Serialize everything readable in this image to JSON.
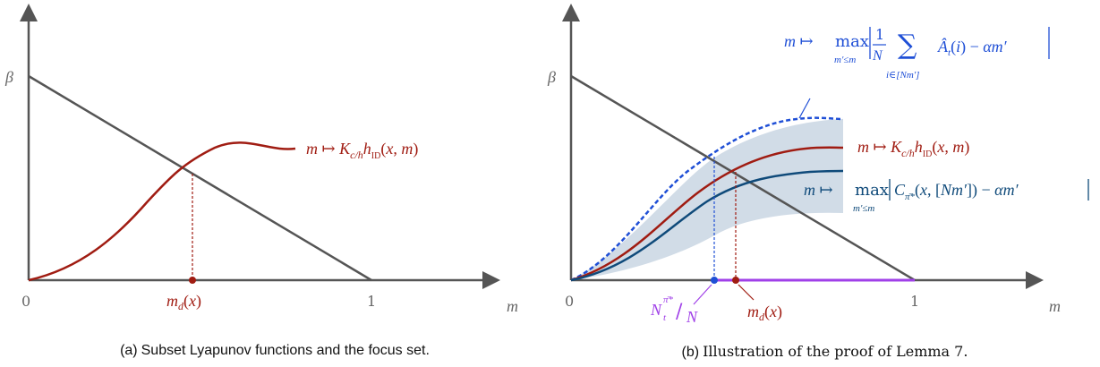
{
  "colors": {
    "axis": "#555555",
    "red": "#a01c12",
    "blue": "#1f4fd6",
    "navy": "#0f4a7a",
    "band": "#c9d6e3",
    "purple": "#a040e8",
    "grey_text": "#666666"
  },
  "left": {
    "beta": "β",
    "zero": "0",
    "one": "1",
    "m_axis": "m",
    "md_label": "m_d(x)",
    "curve_label": "m ↦ K_{c/h} h_ID(x, m)",
    "caption_letter": "(a)",
    "caption_text": "Subset Lyapunov functions and the focus set."
  },
  "right": {
    "beta": "β",
    "zero": "0",
    "one": "1",
    "m_axis": "m",
    "md_label": "m_d(x)",
    "n_label": "N_t^{π̄*}/N",
    "upper_label": "m ↦ max_{m′≤m} | 1/N Σ_{i∈[Nm′]} Â_t(i) − αm′ |",
    "red_label": "m ↦ K_{c/h} h_ID(x, m)",
    "lower_label": "m ↦ max_{m′≤m} | C_{π̄*}(x, [Nm′]) − αm′ |",
    "caption_letter": "(b)",
    "caption_text": "Illustration of the proof of Lemma 7."
  }
}
